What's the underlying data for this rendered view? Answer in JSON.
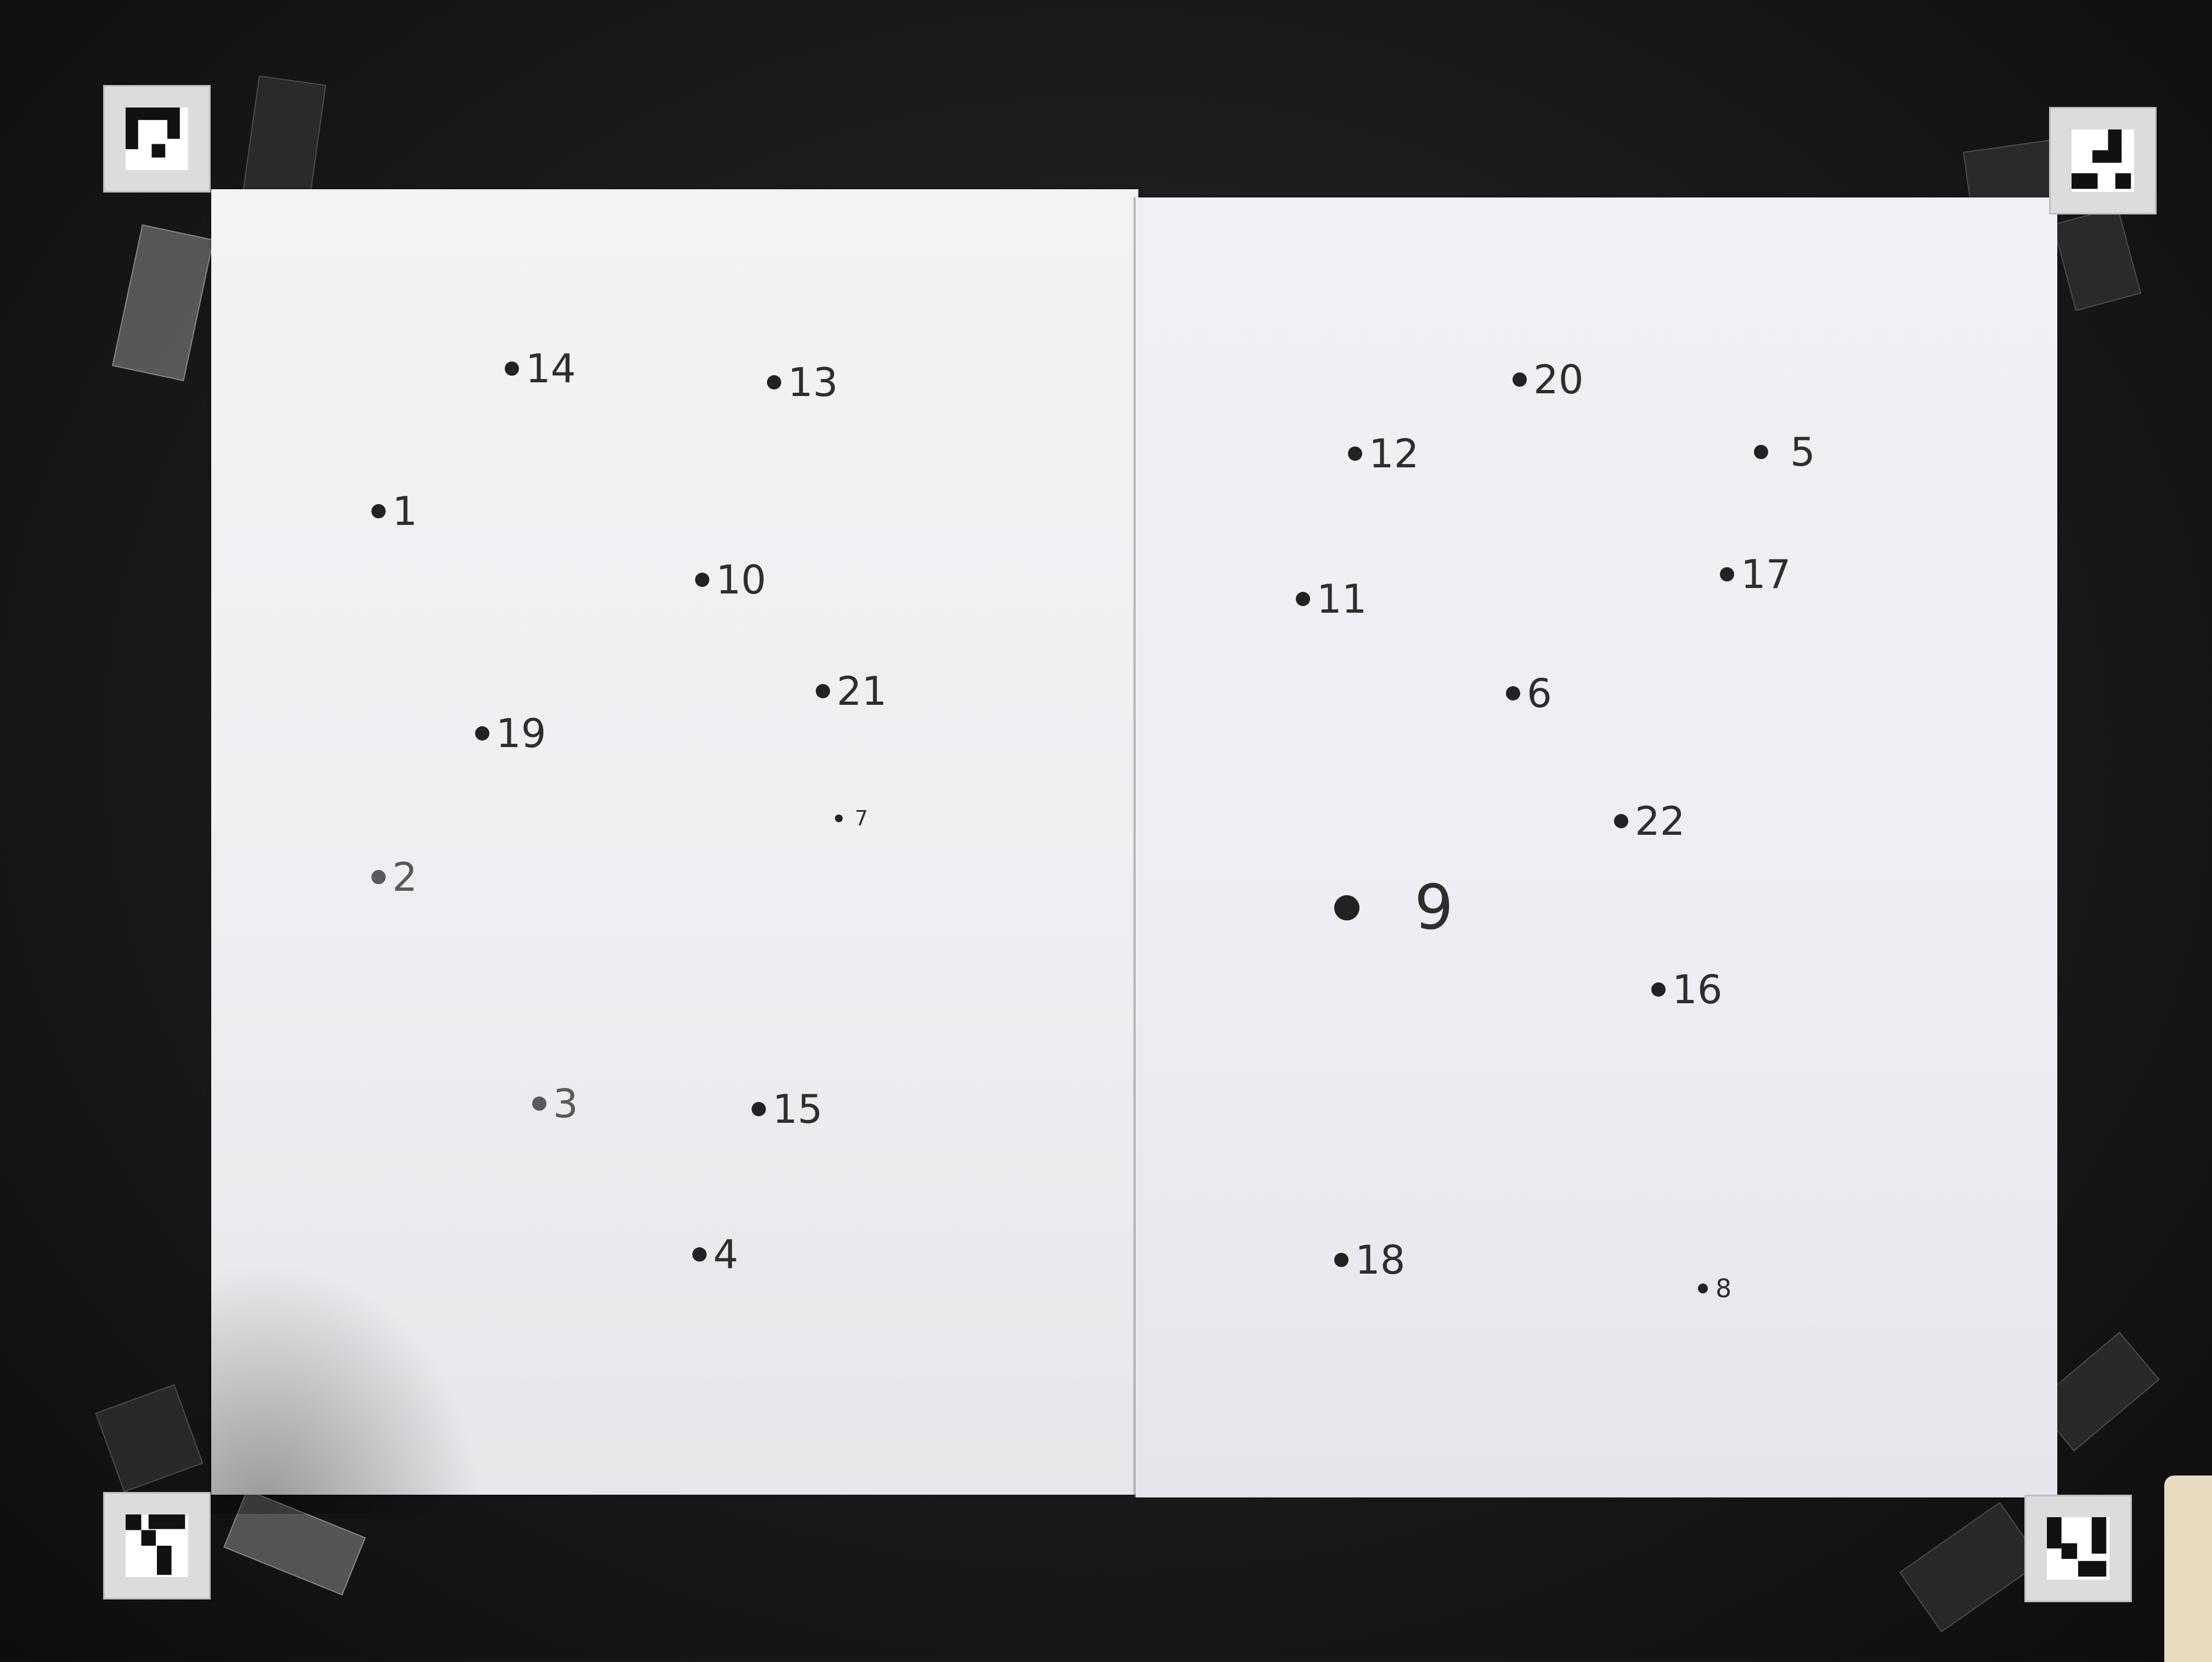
{
  "dots": [
    {
      "label": "14"
    },
    {
      "label": "13"
    },
    {
      "label": "1"
    },
    {
      "label": "10"
    },
    {
      "label": "21"
    },
    {
      "label": "19"
    },
    {
      "label": "7"
    },
    {
      "label": "2"
    },
    {
      "label": "3"
    },
    {
      "label": "15"
    },
    {
      "label": "4"
    },
    {
      "label": "20"
    },
    {
      "label": "12"
    },
    {
      "label": "5"
    },
    {
      "label": "11"
    },
    {
      "label": "17"
    },
    {
      "label": "6"
    },
    {
      "label": "22"
    },
    {
      "label": "9"
    },
    {
      "label": "16"
    },
    {
      "label": "18"
    },
    {
      "label": "8"
    }
  ],
  "colors": {
    "table": "#1a1a1a",
    "paper": "#eeeff2",
    "ink": "#2e2e2e",
    "marker_bg": "#dcdcdc",
    "marker_ink": "#111111"
  },
  "markers": [
    {
      "name": "fiducial-top-left-icon"
    },
    {
      "name": "fiducial-top-right-icon"
    },
    {
      "name": "fiducial-bottom-left-icon"
    },
    {
      "name": "fiducial-bottom-right-icon"
    }
  ]
}
